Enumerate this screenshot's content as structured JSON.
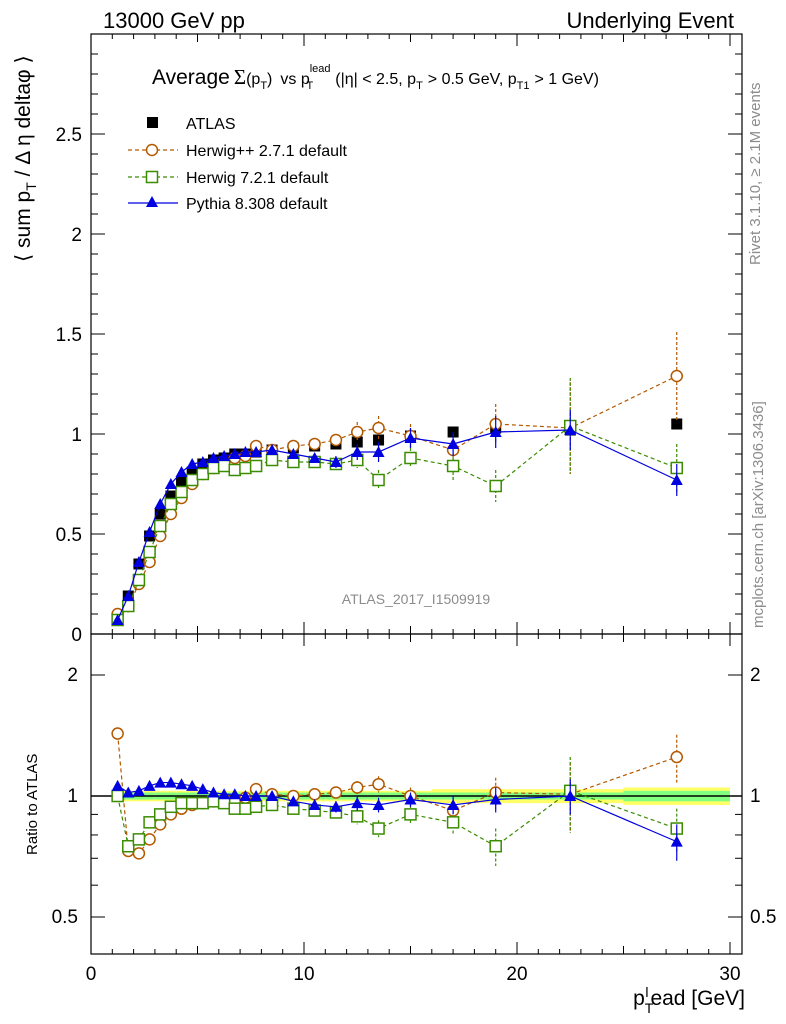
{
  "header": {
    "left": "13000 GeV pp",
    "right": "Underlying Event"
  },
  "side": {
    "rivet": "Rivet 3.1.10, ≥ 2.1M events",
    "mcplots": "mcplots.cern.ch [arXiv:1306.3436]"
  },
  "plot_title": {
    "prefix": "Average",
    "sigma": "Σ",
    "sig_arg": "(p",
    "sig_sub": "T",
    "sig_close": ")",
    "vs": "vs p",
    "vs_sup": "lead",
    "vs_sub": "T",
    "cuts_a": "(|η| < 2.5, p",
    "cuts_a_sub": "T",
    "cuts_b": "> 0.5 GeV, p",
    "cuts_b_sub": "T1",
    "cuts_c": "> 1 GeV)"
  },
  "watermark": "ATLAS_2017_I1509919",
  "axes": {
    "ylabel_top": {
      "a": "⟨ sum p",
      "sub": "T",
      "b": " / Δ η deltaφ ⟩"
    },
    "ylabel_bottom": "Ratio to ATLAS",
    "xlabel": {
      "a": "p",
      "sub": "T",
      "sup": "l",
      "b": "ead [GeV]"
    },
    "x_ticks": [
      "0",
      "10",
      "20",
      "30"
    ],
    "top_y_ticks": [
      "0",
      "0.5",
      "1",
      "1.5",
      "2",
      "2.5"
    ],
    "bottom_y_ticks": [
      "0.5",
      "1",
      "2"
    ]
  },
  "legend": [
    {
      "label": "ATLAS",
      "color": "#000000",
      "marker": "filled-square"
    },
    {
      "label": "Herwig++ 2.7.1 default",
      "color": "#b35900",
      "marker": "open-circle"
    },
    {
      "label": "Herwig 7.2.1 default",
      "color": "#3a8c00",
      "marker": "open-square"
    },
    {
      "label": "Pythia 8.308 default",
      "color": "#0000e0",
      "marker": "filled-triangle"
    }
  ],
  "chart_data": [
    {
      "type": "scatter",
      "panel": "main",
      "xlim": [
        0,
        30
      ],
      "ylim": [
        0,
        3
      ],
      "x": [
        1.25,
        1.75,
        2.25,
        2.75,
        3.25,
        3.75,
        4.25,
        4.75,
        5.25,
        5.75,
        6.25,
        6.75,
        7.25,
        7.75,
        8.5,
        9.5,
        10.5,
        11.5,
        12.5,
        13.5,
        15,
        17,
        19,
        22.5,
        27.5
      ],
      "series": [
        {
          "name": "ATLAS",
          "values": [
            0.07,
            0.19,
            0.35,
            0.49,
            0.6,
            0.69,
            0.76,
            0.81,
            0.85,
            0.87,
            0.88,
            0.9,
            0.9,
            0.91,
            0.92,
            0.93,
            0.94,
            0.95,
            0.96,
            0.97,
            0.99,
            1.01,
            1.03,
            1.02,
            1.05
          ]
        },
        {
          "name": "Herwig++ 2.7.1 default",
          "values": [
            0.1,
            0.14,
            0.25,
            0.36,
            0.49,
            0.6,
            0.68,
            0.75,
            0.8,
            0.83,
            0.86,
            0.88,
            0.89,
            0.94,
            0.92,
            0.94,
            0.95,
            0.97,
            1.01,
            1.03,
            0.99,
            0.92,
            1.05,
            1.03,
            1.29
          ]
        },
        {
          "name": "Herwig 7.2.1 default",
          "values": [
            0.07,
            0.14,
            0.27,
            0.41,
            0.54,
            0.65,
            0.71,
            0.77,
            0.8,
            0.83,
            0.84,
            0.82,
            0.83,
            0.84,
            0.87,
            0.86,
            0.86,
            0.85,
            0.87,
            0.77,
            0.88,
            0.84,
            0.74,
            1.04,
            0.83
          ]
        },
        {
          "name": "Pythia 8.308 default",
          "values": [
            0.07,
            0.19,
            0.36,
            0.51,
            0.65,
            0.75,
            0.81,
            0.85,
            0.86,
            0.88,
            0.89,
            0.9,
            0.91,
            0.91,
            0.92,
            0.9,
            0.88,
            0.86,
            0.91,
            0.91,
            0.98,
            0.95,
            1.01,
            1.02,
            0.77
          ]
        }
      ],
      "errors": {
        "Herwig++ 2.7.1 default": [
          0,
          0,
          0,
          0,
          0,
          0,
          0,
          0,
          0,
          0,
          0,
          0,
          0,
          0,
          0,
          0.02,
          0.02,
          0.03,
          0.05,
          0.06,
          0.06,
          0.08,
          0.1,
          0.23,
          0.22
        ],
        "Herwig 7.2.1 default": [
          0,
          0,
          0,
          0,
          0,
          0,
          0,
          0,
          0,
          0,
          0,
          0,
          0,
          0,
          0,
          0.02,
          0.02,
          0.03,
          0.04,
          0.05,
          0.05,
          0.07,
          0.08,
          0.24,
          0.12
        ],
        "Pythia 8.308 default": [
          0,
          0,
          0,
          0,
          0,
          0,
          0,
          0,
          0,
          0,
          0,
          0,
          0,
          0,
          0,
          0.02,
          0.02,
          0.03,
          0.04,
          0.05,
          0.05,
          0.06,
          0.08,
          0.1,
          0.08
        ]
      }
    },
    {
      "type": "scatter",
      "panel": "ratio",
      "xlim": [
        0,
        30
      ],
      "ylim": [
        0.35,
        2.4
      ],
      "y_scale": "log",
      "x": [
        1.25,
        1.75,
        2.25,
        2.75,
        3.25,
        3.75,
        4.25,
        4.75,
        5.25,
        5.75,
        6.25,
        6.75,
        7.25,
        7.75,
        8.5,
        9.5,
        10.5,
        11.5,
        12.5,
        13.5,
        15,
        17,
        19,
        22.5,
        27.5
      ],
      "series": [
        {
          "name": "Herwig++ 2.7.1 default",
          "values": [
            1.43,
            0.73,
            0.72,
            0.78,
            0.85,
            0.9,
            0.93,
            0.95,
            0.96,
            0.97,
            0.98,
            0.97,
            0.99,
            1.04,
            1.01,
            1.0,
            1.01,
            1.02,
            1.05,
            1.07,
            1.0,
            0.92,
            1.02,
            1.01,
            1.25
          ]
        },
        {
          "name": "Herwig 7.2.1 default",
          "values": [
            1.0,
            0.75,
            0.78,
            0.86,
            0.9,
            0.94,
            0.96,
            0.96,
            0.96,
            0.97,
            0.96,
            0.93,
            0.93,
            0.94,
            0.95,
            0.93,
            0.92,
            0.91,
            0.89,
            0.83,
            0.9,
            0.86,
            0.75,
            1.03,
            0.83
          ]
        },
        {
          "name": "Pythia 8.308 default",
          "values": [
            1.06,
            1.02,
            1.03,
            1.06,
            1.08,
            1.08,
            1.07,
            1.06,
            1.04,
            1.02,
            1.01,
            1.01,
            1.0,
            1.0,
            1.0,
            0.97,
            0.95,
            0.94,
            0.96,
            0.95,
            0.98,
            0.95,
            0.98,
            1.0,
            0.77
          ]
        }
      ],
      "errors": {
        "Herwig++ 2.7.1 default": [
          0,
          0,
          0,
          0,
          0,
          0,
          0,
          0,
          0,
          0,
          0,
          0,
          0,
          0,
          0,
          0.02,
          0.02,
          0.03,
          0.04,
          0.05,
          0.05,
          0.07,
          0.09,
          0.2,
          0.17
        ],
        "Herwig 7.2.1 default": [
          0,
          0,
          0,
          0,
          0,
          0,
          0,
          0,
          0,
          0,
          0,
          0,
          0,
          0,
          0,
          0.02,
          0.02,
          0.03,
          0.04,
          0.04,
          0.05,
          0.06,
          0.08,
          0.22,
          0.1
        ],
        "Pythia 8.308 default": [
          0,
          0,
          0,
          0,
          0,
          0,
          0,
          0,
          0,
          0,
          0,
          0,
          0,
          0,
          0,
          0.02,
          0.02,
          0.03,
          0.04,
          0.04,
          0.04,
          0.05,
          0.07,
          0.1,
          0.08
        ]
      },
      "uncertainty_band": {
        "x_edges": [
          1.0,
          2.0,
          3.0,
          4.0,
          5.0,
          6.0,
          7.0,
          8.0,
          9.0,
          10.0,
          11.0,
          12.0,
          13.0,
          14.0,
          16.0,
          18.0,
          20.0,
          25.0,
          30.0
        ],
        "inner_half_width": [
          0.02,
          0.02,
          0.02,
          0.02,
          0.02,
          0.02,
          0.02,
          0.02,
          0.02,
          0.02,
          0.02,
          0.02,
          0.02,
          0.02,
          0.02,
          0.02,
          0.02,
          0.03,
          0.04
        ],
        "outer_half_width": [
          0.03,
          0.03,
          0.03,
          0.03,
          0.03,
          0.03,
          0.03,
          0.03,
          0.03,
          0.03,
          0.03,
          0.03,
          0.03,
          0.03,
          0.04,
          0.04,
          0.04,
          0.05,
          0.07
        ],
        "inner_color": "#80ff80",
        "outer_color": "#ffff66"
      }
    }
  ]
}
